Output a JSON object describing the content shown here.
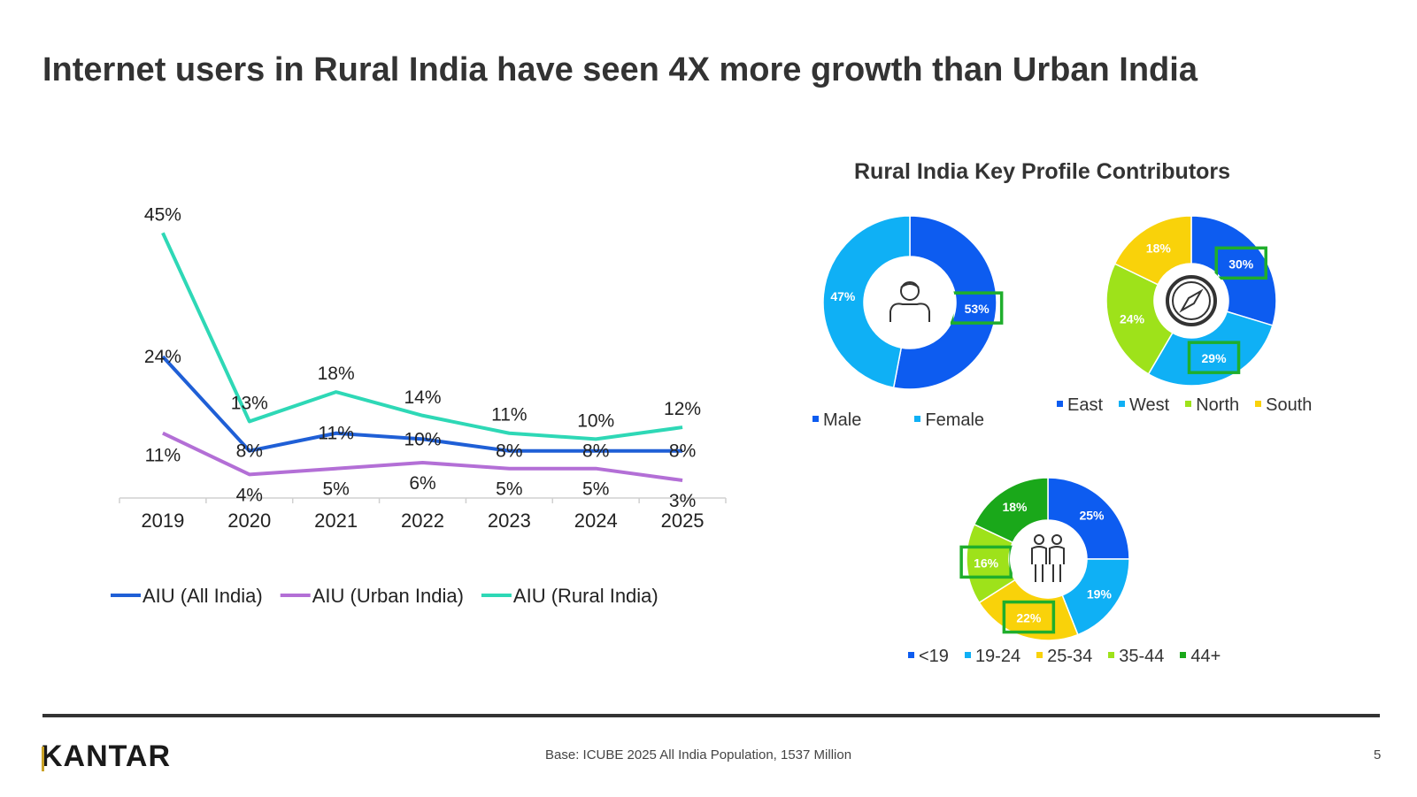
{
  "page": {
    "title": "Internet users in Rural India have seen 4X more growth than Urban India",
    "section_title": "Rural India Key Profile Contributors",
    "brand": "KANTAR",
    "base_note": "Base: ICUBE 2025 All India Population, 1537 Million",
    "page_number": "5"
  },
  "chart_data": [
    {
      "type": "line",
      "x": [
        "2019",
        "2020",
        "2021",
        "2022",
        "2023",
        "2024",
        "2025"
      ],
      "series": [
        {
          "name": "AIU (All India)",
          "color": "#1f5fd6",
          "values": [
            24,
            8,
            11,
            10,
            8,
            8,
            8
          ],
          "labels": [
            "24%",
            "8%",
            "11%",
            "10%",
            "8%",
            "8%",
            "8%"
          ]
        },
        {
          "name": "AIU (Urban India)",
          "color": "#b36fd6",
          "values": [
            11,
            4,
            5,
            6,
            5,
            5,
            3
          ],
          "labels": [
            "11%",
            "4%",
            "5%",
            "6%",
            "5%",
            "5%",
            "3%"
          ]
        },
        {
          "name": "AIU (Rural India)",
          "color": "#2ed8b6",
          "values": [
            45,
            13,
            18,
            14,
            11,
            10,
            12
          ],
          "labels": [
            "45%",
            "13%",
            "18%",
            "14%",
            "11%",
            "10%",
            "12%"
          ]
        }
      ],
      "ylim": [
        0,
        50
      ],
      "grid": false,
      "legend": "bottom"
    },
    {
      "type": "pie",
      "center_icon": "person-icon",
      "categories": [
        "Male",
        "Female"
      ],
      "values": [
        53,
        47
      ],
      "labels": [
        "53%",
        "47%"
      ],
      "colors": [
        "#0d5cf0",
        "#0fb0f5"
      ],
      "highlighted": [
        "Male"
      ],
      "legend": "bottom"
    },
    {
      "type": "pie",
      "center_icon": "compass-icon",
      "categories": [
        "East",
        "West",
        "North",
        "South"
      ],
      "values": [
        30,
        29,
        24,
        18
      ],
      "labels": [
        "30%",
        "29%",
        "24%",
        "18%"
      ],
      "colors": [
        "#0d5cf0",
        "#0fb0f5",
        "#9ee21a",
        "#f9d20a"
      ],
      "highlighted": [
        "East",
        "West"
      ],
      "legend": "bottom"
    },
    {
      "type": "pie",
      "center_icon": "people-icon",
      "categories": [
        "<19",
        "19-24",
        "25-34",
        "35-44",
        "44+"
      ],
      "values": [
        25,
        19,
        22,
        16,
        18
      ],
      "labels": [
        "25%",
        "19%",
        "22%",
        "16%",
        "18%"
      ],
      "colors": [
        "#0d5cf0",
        "#0fb0f5",
        "#f9d20a",
        "#9ee21a",
        "#1aa81a"
      ],
      "highlighted": [
        "25-34",
        "35-44"
      ],
      "legend": "bottom"
    }
  ],
  "style": {
    "highlight_color": "#1fae2c",
    "axis_color": "#d0d0d0"
  }
}
